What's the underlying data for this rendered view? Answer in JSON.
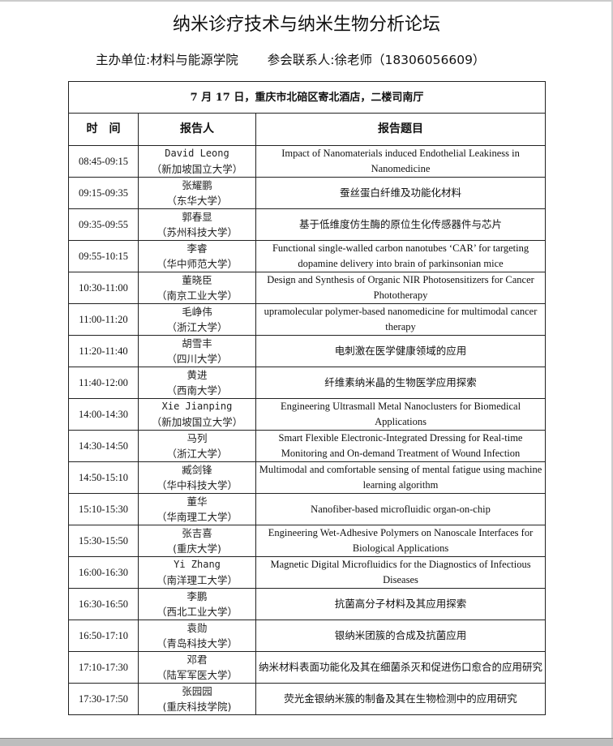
{
  "title": "纳米诊疗技术与纳米生物分析论坛",
  "organizer": "主办单位:材料与能源学院",
  "contact": "参会联系人:徐老师（18306056609）",
  "venue": "7 月 17 日，重庆市北碚区寄北酒店，二楼司南厅",
  "headers": {
    "time": "时　间",
    "speaker": "报告人",
    "topic": "报告题目"
  },
  "rows": [
    {
      "time": "08:45-09:15",
      "name": "David Leong",
      "affil": "（新加坡国立大学）",
      "topic": "Impact of Nanomaterials induced Endothelial Leakiness in Nanomedicine"
    },
    {
      "time": "09:15-09:35",
      "name": "张耀鹏",
      "affil": "（东华大学）",
      "topic": "蚕丝蛋白纤维及功能化材料"
    },
    {
      "time": "09:35-09:55",
      "name": "郭春显",
      "affil": "（苏州科技大学）",
      "topic": "基于低维度仿生酶的原位生化传感器件与芯片"
    },
    {
      "time": "09:55-10:15",
      "name": "李睿",
      "affil": "（华中师范大学）",
      "topic": "Functional single-walled carbon nanotubes ‘CAR’ for targeting dopamine delivery into brain of parkinsonian mice"
    },
    {
      "time": "10:30-11:00",
      "name": "董晓臣",
      "affil": "（南京工业大学）",
      "topic": "Design and Synthesis of Organic NIR Photosensitizers for Cancer Phototherapy"
    },
    {
      "time": "11:00-11:20",
      "name": "毛峥伟",
      "affil": "（浙江大学）",
      "topic": "upramolecular polymer-based nanomedicine for multimodal cancer therapy"
    },
    {
      "time": "11:20-11:40",
      "name": "胡雪丰",
      "affil": "（四川大学）",
      "topic": "电刺激在医学健康领域的应用"
    },
    {
      "time": "11:40-12:00",
      "name": "黄进",
      "affil": "（西南大学）",
      "topic": "纤维素纳米晶的生物医学应用探索"
    },
    {
      "time": "14:00-14:30",
      "name": "Xie Jianping",
      "affil": "（新加坡国立大学）",
      "topic": "Engineering Ultrasmall Metal Nanoclusters for Biomedical Applications"
    },
    {
      "time": "14:30-14:50",
      "name": "马列",
      "affil": "（浙江大学）",
      "topic": "Smart Flexible Electronic-Integrated Dressing for Real-time Monitoring and On-demand Treatment of Wound Infection"
    },
    {
      "time": "14:50-15:10",
      "name": "臧剑锋",
      "affil": "（华中科技大学）",
      "topic": "Multimodal and comfortable sensing of mental fatigue using machine learning algorithm"
    },
    {
      "time": "15:10-15:30",
      "name": "董华",
      "affil": "（华南理工大学）",
      "topic": "Nanofiber-based microfluidic organ-on-chip"
    },
    {
      "time": "15:30-15:50",
      "name": "张吉喜",
      "affil": "(重庆大学)",
      "topic": "Engineering Wet-Adhesive Polymers on Nanoscale Interfaces for Biological Applications"
    },
    {
      "time": "16:00-16:30",
      "name": "Yi Zhang",
      "affil": "（南洋理工大学）",
      "topic": "Magnetic Digital Microfluidics for the Diagnostics of Infectious Diseases"
    },
    {
      "time": "16:30-16:50",
      "name": "李鹏",
      "affil": "（西北工业大学）",
      "topic": "抗菌高分子材料及其应用探索"
    },
    {
      "time": "16:50-17:10",
      "name": "袁勋",
      "affil": "（青岛科技大学）",
      "topic": "银纳米团簇的合成及抗菌应用"
    },
    {
      "time": "17:10-17:30",
      "name": "邓君",
      "affil": "（陆军军医大学）",
      "topic": "纳米材料表面功能化及其在细菌杀灭和促进伤口愈合的应用研究"
    },
    {
      "time": "17:30-17:50",
      "name": "张园园",
      "affil": "(重庆科技学院)",
      "topic": "荧光金银纳米簇的制备及其在生物检测中的应用研究"
    }
  ]
}
